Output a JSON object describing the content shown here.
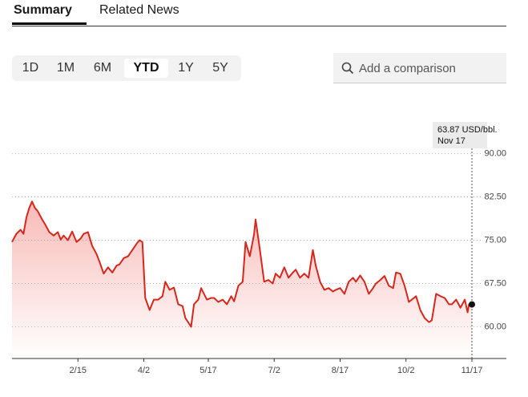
{
  "tabs": [
    "Summary",
    "Related News"
  ],
  "ranges": [
    "1D",
    "1M",
    "6M",
    "YTD",
    "1Y",
    "5Y"
  ],
  "search_placeholder": "Add a comparison",
  "chart_data": {
    "type": "line",
    "color": "#d9261c",
    "tooltip": {
      "value_label": "63.87 USD/bbl.",
      "date": "Nov 17"
    },
    "x": [
      0,
      3,
      6,
      8,
      10,
      12,
      14,
      16,
      18,
      21,
      23,
      26,
      29,
      32,
      34,
      36,
      39,
      42,
      45,
      48,
      50,
      53,
      56,
      59,
      61,
      64,
      67,
      70,
      73,
      75,
      78,
      81,
      84,
      87,
      89,
      91,
      93,
      96,
      99,
      102,
      105,
      107,
      110,
      113,
      116,
      119,
      121,
      125,
      127,
      130,
      132,
      136,
      139,
      141,
      144,
      147,
      150,
      153,
      155,
      158,
      161,
      163,
      166,
      169,
      170,
      173,
      176,
      179,
      182,
      184,
      187,
      190,
      193,
      196,
      198,
      201,
      204,
      207,
      210,
      212,
      215,
      218,
      221,
      224,
      226,
      229,
      232,
      235,
      238,
      240,
      243,
      246,
      249,
      252,
      254,
      257,
      260,
      263,
      266,
      268,
      271,
      274,
      277,
      279,
      282,
      285,
      288,
      291,
      293,
      296,
      299,
      302,
      305,
      307,
      310,
      313,
      316,
      318,
      319,
      321
    ],
    "values": [
      74.7,
      76.1,
      76.8,
      76.1,
      78.9,
      80.6,
      81.7,
      80.6,
      80.0,
      78.6,
      77.8,
      76.4,
      75.8,
      76.4,
      75.1,
      75.8,
      75.0,
      76.5,
      74.7,
      75.3,
      76.1,
      76.4,
      74.0,
      72.6,
      71.3,
      69.2,
      70.3,
      69.4,
      70.6,
      70.8,
      71.9,
      72.2,
      73.3,
      74.4,
      75.0,
      74.7,
      65.0,
      62.9,
      64.7,
      64.7,
      65.3,
      67.8,
      66.4,
      66.8,
      63.9,
      63.6,
      61.5,
      60.0,
      63.9,
      64.7,
      66.7,
      64.7,
      65.0,
      65.0,
      64.3,
      64.7,
      63.9,
      65.3,
      64.4,
      67.1,
      67.8,
      74.7,
      72.2,
      76.1,
      78.6,
      73.3,
      67.8,
      68.1,
      67.5,
      69.2,
      68.5,
      70.3,
      68.5,
      69.4,
      69.9,
      68.5,
      69.2,
      68.5,
      73.3,
      70.6,
      67.8,
      66.4,
      66.7,
      66.1,
      66.4,
      66.7,
      65.7,
      67.8,
      68.5,
      67.8,
      68.9,
      67.8,
      65.7,
      66.7,
      67.5,
      68.1,
      68.8,
      67.1,
      66.7,
      69.4,
      69.2,
      67.1,
      64.3,
      64.7,
      65.3,
      62.9,
      61.5,
      60.8,
      61.1,
      65.7,
      65.3,
      65.0,
      63.9,
      63.9,
      64.7,
      63.3,
      64.7,
      62.5,
      63.9,
      63.87
    ],
    "xlim": [
      0,
      321
    ],
    "xticks": [
      {
        "value": 46,
        "label": "2/15"
      },
      {
        "value": 92,
        "label": "4/2"
      },
      {
        "value": 137,
        "label": "5/17"
      },
      {
        "value": 183,
        "label": "7/2"
      },
      {
        "value": 229,
        "label": "8/17"
      },
      {
        "value": 275,
        "label": "10/2"
      },
      {
        "value": 321,
        "label": "11/17"
      }
    ],
    "ylim": [
      54.5,
      95.5
    ],
    "yticks": [
      {
        "value": 60,
        "label": "60.00"
      },
      {
        "value": 67.5,
        "label": "67.50"
      },
      {
        "value": 75,
        "label": "75.00"
      },
      {
        "value": 82.5,
        "label": "82.50"
      },
      {
        "value": 90,
        "label": "90.00"
      }
    ],
    "grid": true
  }
}
